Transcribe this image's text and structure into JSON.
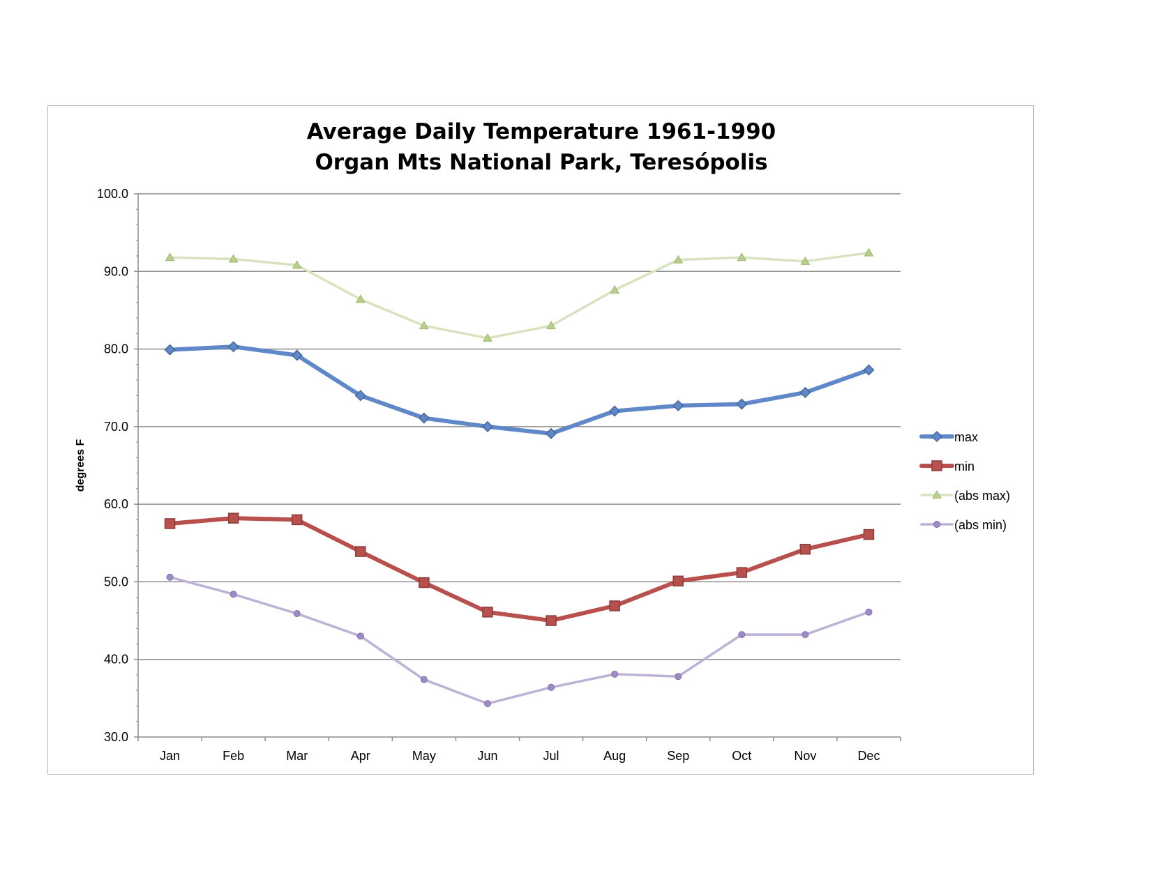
{
  "chart_data": {
    "type": "line",
    "title_lines": [
      "Average Daily Temperature 1961-1990",
      "Organ Mts National Park, Teresópolis"
    ],
    "xlabel": "",
    "ylabel": "degrees F",
    "categories": [
      "Jan",
      "Feb",
      "Mar",
      "Apr",
      "May",
      "Jun",
      "Jul",
      "Aug",
      "Sep",
      "Oct",
      "Nov",
      "Dec"
    ],
    "ylim": [
      30,
      100
    ],
    "yticks": [
      30,
      40,
      50,
      60,
      70,
      80,
      90,
      100
    ],
    "ytick_labels": [
      "30.0",
      "40.0",
      "50.0",
      "60.0",
      "70.0",
      "80.0",
      "90.0",
      "100.0"
    ],
    "grid": true,
    "legend_position": "right",
    "series": [
      {
        "name": "max",
        "color": "#5f88c9",
        "marker": "diamond",
        "values": [
          79.9,
          80.3,
          79.2,
          74.0,
          71.1,
          70.0,
          69.1,
          72.0,
          72.7,
          72.9,
          74.4,
          77.3
        ]
      },
      {
        "name": "min",
        "color": "#b8514d",
        "marker": "square",
        "values": [
          57.5,
          58.2,
          58.0,
          53.9,
          49.9,
          46.1,
          45.0,
          46.9,
          50.1,
          51.2,
          54.2,
          56.1
        ]
      },
      {
        "name": "(abs max)",
        "color": "#d7e3bf",
        "marker": "triangle",
        "values": [
          91.8,
          91.6,
          90.8,
          86.4,
          83.0,
          81.4,
          83.0,
          87.6,
          91.5,
          91.8,
          91.3,
          92.4
        ]
      },
      {
        "name": "(abs min)",
        "color": "#bdb1d6",
        "marker": "circle",
        "values": [
          50.6,
          48.4,
          45.9,
          43.0,
          37.4,
          34.3,
          36.4,
          38.1,
          37.8,
          43.2,
          43.2,
          46.1
        ]
      }
    ]
  }
}
